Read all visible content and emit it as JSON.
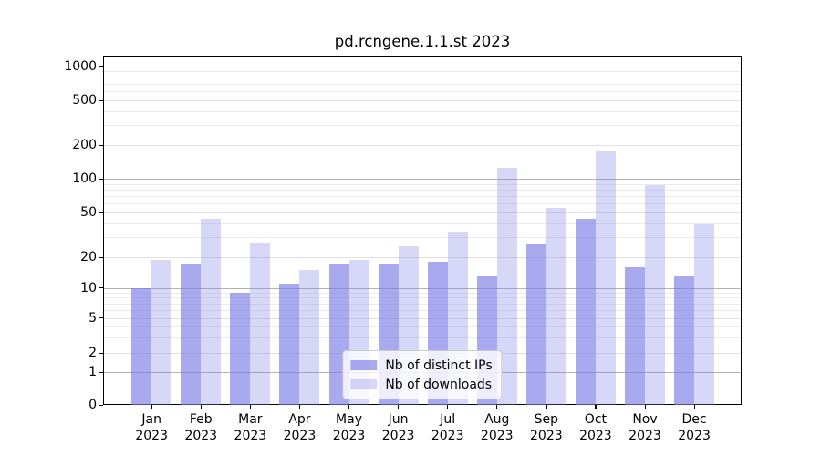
{
  "chart_data": {
    "type": "bar",
    "title": "pd.rcngene.1.1.st 2023",
    "categories": [
      "Jan 2023",
      "Feb 2023",
      "Mar 2023",
      "Apr 2023",
      "May 2023",
      "Jun 2023",
      "Jul 2023",
      "Aug 2023",
      "Sep 2023",
      "Oct 2023",
      "Nov 2023",
      "Dec 2023"
    ],
    "series": [
      {
        "name": "Nb of distinct IPs",
        "color": "rgba(123,123,232,0.65)",
        "values": [
          10,
          17,
          9,
          11,
          17,
          17,
          18,
          13,
          26,
          44,
          16,
          13
        ]
      },
      {
        "name": "Nb of downloads",
        "color": "rgba(123,123,232,0.30)",
        "values": [
          19,
          44,
          27,
          15,
          19,
          25,
          34,
          125,
          55,
          175,
          88,
          39
        ]
      }
    ],
    "xlabel": "",
    "ylabel": "",
    "y_axis": {
      "scale": "log-like",
      "tick_labels": [
        "0",
        "1",
        "2",
        "5",
        "10",
        "20",
        "50",
        "100",
        "200",
        "500",
        "1000"
      ],
      "range_top": 1300
    },
    "legend": {
      "position": "lower center",
      "entries": [
        "Nb of distinct IPs",
        "Nb of downloads"
      ]
    },
    "grid": "horizontal",
    "colors": {
      "distinct_ips_rendered": "#a9a9f0",
      "downloads_rendered": "#d7d7f8",
      "major_gridline": "#b3b3b3",
      "minor_gridline": "#ebebeb",
      "labeled_gridline": "#e0e0e0"
    }
  }
}
